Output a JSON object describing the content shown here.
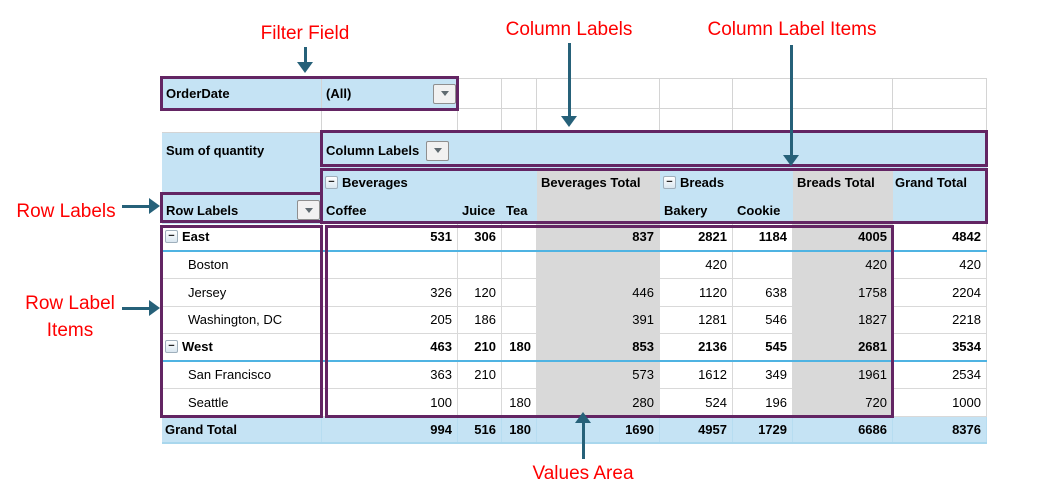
{
  "annotations": {
    "filter_field": "Filter Field",
    "column_labels": "Column Labels",
    "column_label_items": "Column Label Items",
    "row_labels": "Row Labels",
    "row_label_items": {
      "line1": "Row Label",
      "line2": "Items"
    },
    "values_area": "Values Area",
    "text_color": "#FE0000",
    "arrow_color": "#266179",
    "highlight_box_color": "#632563"
  },
  "icons": {
    "collapse": "−",
    "dropdown": "▼"
  },
  "pivot": {
    "filter": {
      "field": "OrderDate",
      "value": "(All)"
    },
    "measure_label": "Sum of quantity",
    "column_labels_header": "Column Labels",
    "row_labels_header": "Row Labels",
    "column_groups": [
      {
        "label": "Beverages",
        "items": [
          "Coffee",
          "Juice",
          "Tea"
        ],
        "total_label": "Beverages Total"
      },
      {
        "label": "Breads",
        "items": [
          "Bakery",
          "Cookie"
        ],
        "total_label": "Breads Total"
      }
    ],
    "grand_total_column_label": "Grand Total",
    "rows": [
      {
        "label": "East",
        "type": "group",
        "values": [
          "531",
          "306",
          "",
          "837",
          "2821",
          "1184",
          "4005",
          "4842"
        ]
      },
      {
        "label": "Boston",
        "type": "city",
        "values": [
          "",
          "",
          "",
          "",
          "420",
          "",
          "420",
          "420"
        ]
      },
      {
        "label": "Jersey",
        "type": "city",
        "values": [
          "326",
          "120",
          "",
          "446",
          "1120",
          "638",
          "1758",
          "2204"
        ]
      },
      {
        "label": "Washington, DC",
        "type": "city",
        "values": [
          "205",
          "186",
          "",
          "391",
          "1281",
          "546",
          "1827",
          "2218"
        ]
      },
      {
        "label": "West",
        "type": "group",
        "values": [
          "463",
          "210",
          "180",
          "853",
          "2136",
          "545",
          "2681",
          "3534"
        ]
      },
      {
        "label": "San Francisco",
        "type": "city",
        "values": [
          "363",
          "210",
          "",
          "573",
          "1612",
          "349",
          "1961",
          "2534"
        ]
      },
      {
        "label": "Seattle",
        "type": "city",
        "values": [
          "100",
          "",
          "180",
          "280",
          "524",
          "196",
          "720",
          "1000"
        ]
      },
      {
        "label": "Grand Total",
        "type": "grand",
        "values": [
          "994",
          "516",
          "180",
          "1690",
          "4957",
          "1729",
          "6686",
          "8376"
        ]
      }
    ],
    "colors": {
      "header_fill": "#C5E3F4",
      "subtotal_column_fill": "#D9D9D9",
      "group_separator": "#4FB3E2",
      "grand_total_border": "#A9D7ED",
      "gridline": "#D4D4D4"
    }
  }
}
